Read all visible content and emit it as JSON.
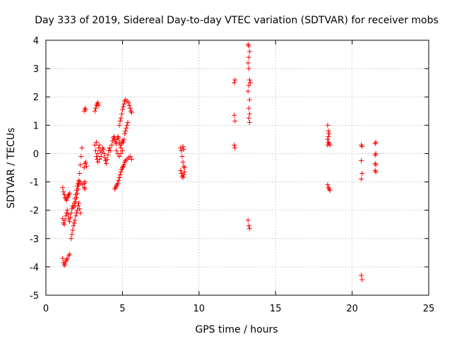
{
  "chart_data": {
    "type": "scatter",
    "title": "Day 333 of 2019, Sidereal Day-to-day VTEC variation (SDTVAR) for receiver mobs",
    "xlabel": "GPS time / hours",
    "ylabel": "SDTVAR / TECUs",
    "xlim": [
      0,
      25
    ],
    "ylim": [
      -5,
      4
    ],
    "xticks": [
      0,
      5,
      10,
      15,
      20,
      25
    ],
    "yticks": [
      -5,
      -4,
      -3,
      -2,
      -1,
      0,
      1,
      2,
      3,
      4
    ],
    "grid": true,
    "marker": "+",
    "color": "#ff0000",
    "series": [
      {
        "points": [
          [
            1.1,
            -1.2
          ],
          [
            1.15,
            -1.35
          ],
          [
            1.2,
            -1.45
          ],
          [
            1.25,
            -1.55
          ],
          [
            1.3,
            -1.6
          ],
          [
            1.35,
            -1.65
          ],
          [
            1.4,
            -1.55
          ],
          [
            1.45,
            -1.5
          ],
          [
            1.5,
            -1.45
          ],
          [
            1.55,
            -1.4
          ],
          [
            1.1,
            -2.3
          ],
          [
            1.15,
            -2.45
          ],
          [
            1.2,
            -2.5
          ],
          [
            1.25,
            -2.35
          ],
          [
            1.3,
            -2.2
          ],
          [
            1.35,
            -2.1
          ],
          [
            1.4,
            -2.0
          ],
          [
            1.45,
            -2.15
          ],
          [
            1.5,
            -2.3
          ],
          [
            1.55,
            -2.4
          ],
          [
            1.6,
            -2.25
          ],
          [
            1.65,
            -2.1
          ],
          [
            1.7,
            -1.95
          ],
          [
            1.75,
            -1.85
          ],
          [
            1.8,
            -1.9
          ],
          [
            1.85,
            -1.75
          ],
          [
            1.9,
            -1.6
          ],
          [
            1.95,
            -1.45
          ],
          [
            2.0,
            -1.3
          ],
          [
            2.05,
            -1.15
          ],
          [
            2.1,
            -1.05
          ],
          [
            2.15,
            -0.95
          ],
          [
            2.2,
            -0.7
          ],
          [
            2.25,
            -0.4
          ],
          [
            2.3,
            -0.1
          ],
          [
            2.35,
            0.2
          ],
          [
            1.9,
            -1.85
          ],
          [
            1.95,
            -1.7
          ],
          [
            2.0,
            -1.55
          ],
          [
            2.05,
            -1.4
          ],
          [
            2.1,
            -1.25
          ],
          [
            2.15,
            -1.1
          ],
          [
            2.2,
            -1.0
          ],
          [
            2.3,
            -1.05
          ],
          [
            2.4,
            -1.1
          ],
          [
            2.5,
            -1.2
          ],
          [
            2.55,
            -1.25
          ],
          [
            1.1,
            -3.7
          ],
          [
            1.15,
            -3.85
          ],
          [
            1.2,
            -3.95
          ],
          [
            1.25,
            -3.9
          ],
          [
            1.3,
            -3.8
          ],
          [
            1.35,
            -3.75
          ],
          [
            1.4,
            -3.7
          ],
          [
            1.5,
            -3.6
          ],
          [
            1.55,
            -3.55
          ],
          [
            1.65,
            -3.0
          ],
          [
            1.7,
            -2.85
          ],
          [
            1.75,
            -2.7
          ],
          [
            1.8,
            -2.55
          ],
          [
            1.85,
            -2.45
          ],
          [
            1.9,
            -2.35
          ],
          [
            1.95,
            -2.2
          ],
          [
            2.0,
            -2.1
          ],
          [
            2.05,
            -2.0
          ],
          [
            2.1,
            -1.85
          ],
          [
            2.15,
            -1.75
          ],
          [
            2.2,
            -1.95
          ],
          [
            2.25,
            -2.1
          ],
          [
            2.5,
            -0.5
          ],
          [
            2.55,
            -0.35
          ],
          [
            2.6,
            -0.3
          ],
          [
            2.65,
            -0.45
          ],
          [
            2.5,
            -1.05
          ],
          [
            2.55,
            -1.0
          ],
          [
            2.5,
            1.5
          ],
          [
            2.55,
            1.6
          ],
          [
            2.6,
            1.55
          ],
          [
            3.2,
            1.5
          ],
          [
            3.25,
            1.6
          ],
          [
            3.3,
            1.7
          ],
          [
            3.35,
            1.75
          ],
          [
            3.4,
            1.8
          ],
          [
            3.45,
            1.7
          ],
          [
            3.2,
            0.3
          ],
          [
            3.25,
            0.1
          ],
          [
            3.3,
            -0.1
          ],
          [
            3.35,
            -0.2
          ],
          [
            3.4,
            0.0
          ],
          [
            3.45,
            0.2
          ],
          [
            3.5,
            0.3
          ],
          [
            3.55,
            0.1
          ],
          [
            3.6,
            -0.1
          ],
          [
            3.65,
            0.05
          ],
          [
            3.7,
            0.2
          ],
          [
            3.75,
            0.15
          ],
          [
            3.8,
            0.0
          ],
          [
            3.85,
            -0.15
          ],
          [
            3.9,
            -0.25
          ],
          [
            3.95,
            -0.35
          ],
          [
            4.0,
            -0.2
          ],
          [
            4.05,
            -0.05
          ],
          [
            4.1,
            0.1
          ],
          [
            4.15,
            0.2
          ],
          [
            4.2,
            0.1
          ],
          [
            3.3,
            0.4
          ],
          [
            3.4,
            -0.3
          ],
          [
            3.5,
            -0.2
          ],
          [
            4.3,
            0.3
          ],
          [
            4.35,
            0.45
          ],
          [
            4.4,
            0.55
          ],
          [
            4.45,
            0.6
          ],
          [
            4.5,
            0.5
          ],
          [
            4.55,
            0.4
          ],
          [
            4.6,
            0.35
          ],
          [
            4.65,
            0.5
          ],
          [
            4.7,
            0.6
          ],
          [
            4.75,
            0.55
          ],
          [
            4.8,
            0.4
          ],
          [
            4.85,
            0.3
          ],
          [
            4.9,
            0.2
          ],
          [
            4.95,
            0.35
          ],
          [
            5.0,
            0.45
          ],
          [
            5.05,
            0.4
          ],
          [
            5.1,
            0.5
          ],
          [
            5.15,
            0.7
          ],
          [
            5.2,
            0.8
          ],
          [
            5.25,
            0.9
          ],
          [
            5.3,
            1.0
          ],
          [
            5.35,
            1.1
          ],
          [
            4.6,
            0.1
          ],
          [
            4.7,
            0.0
          ],
          [
            4.8,
            -0.1
          ],
          [
            4.9,
            0.0
          ],
          [
            5.0,
            0.1
          ],
          [
            4.5,
            -1.25
          ],
          [
            4.55,
            -1.2
          ],
          [
            4.6,
            -1.15
          ],
          [
            4.65,
            -1.1
          ],
          [
            4.7,
            -1.05
          ],
          [
            4.75,
            -0.95
          ],
          [
            4.8,
            -0.85
          ],
          [
            4.85,
            -0.75
          ],
          [
            4.9,
            -0.65
          ],
          [
            4.95,
            -0.55
          ],
          [
            5.0,
            -0.5
          ],
          [
            5.05,
            -0.45
          ],
          [
            5.1,
            -0.4
          ],
          [
            5.15,
            -0.3
          ],
          [
            5.2,
            -0.25
          ],
          [
            5.3,
            -0.2
          ],
          [
            5.4,
            -0.15
          ],
          [
            5.5,
            -0.1
          ],
          [
            5.6,
            -0.2
          ],
          [
            4.8,
            1.0
          ],
          [
            4.85,
            1.15
          ],
          [
            4.9,
            1.25
          ],
          [
            4.95,
            1.4
          ],
          [
            5.0,
            1.55
          ],
          [
            5.05,
            1.65
          ],
          [
            5.1,
            1.75
          ],
          [
            5.15,
            1.85
          ],
          [
            5.2,
            1.9
          ],
          [
            5.3,
            1.85
          ],
          [
            5.4,
            1.8
          ],
          [
            5.45,
            1.7
          ],
          [
            5.5,
            1.6
          ],
          [
            5.55,
            1.5
          ],
          [
            5.6,
            1.45
          ],
          [
            8.8,
            0.2
          ],
          [
            8.85,
            0.1
          ],
          [
            8.9,
            -0.1
          ],
          [
            8.95,
            -0.3
          ],
          [
            9.0,
            -0.45
          ],
          [
            9.05,
            -0.5
          ],
          [
            8.8,
            -0.6
          ],
          [
            8.85,
            -0.7
          ],
          [
            8.9,
            -0.8
          ],
          [
            8.95,
            -0.85
          ],
          [
            9.0,
            -0.75
          ],
          [
            9.05,
            -0.65
          ],
          [
            8.95,
            0.25
          ],
          [
            9.0,
            0.15
          ],
          [
            12.3,
            2.5
          ],
          [
            12.35,
            2.6
          ],
          [
            12.3,
            1.35
          ],
          [
            12.35,
            1.15
          ],
          [
            12.3,
            0.3
          ],
          [
            12.35,
            0.2
          ],
          [
            13.2,
            3.85
          ],
          [
            13.25,
            3.8
          ],
          [
            13.3,
            3.6
          ],
          [
            13.25,
            3.4
          ],
          [
            13.2,
            3.2
          ],
          [
            13.25,
            3.0
          ],
          [
            13.3,
            2.6
          ],
          [
            13.25,
            2.4
          ],
          [
            13.2,
            2.2
          ],
          [
            13.3,
            1.9
          ],
          [
            13.25,
            1.6
          ],
          [
            13.3,
            1.4
          ],
          [
            13.25,
            1.25
          ],
          [
            13.3,
            1.1
          ],
          [
            13.35,
            2.5
          ],
          [
            13.2,
            -2.35
          ],
          [
            13.25,
            -2.55
          ],
          [
            13.3,
            -2.65
          ],
          [
            18.4,
            1.0
          ],
          [
            18.45,
            0.8
          ],
          [
            18.5,
            0.7
          ],
          [
            18.45,
            0.6
          ],
          [
            18.4,
            0.5
          ],
          [
            18.45,
            0.4
          ],
          [
            18.5,
            0.35
          ],
          [
            18.55,
            0.3
          ],
          [
            18.4,
            0.3
          ],
          [
            18.4,
            -1.1
          ],
          [
            18.45,
            -1.2
          ],
          [
            18.5,
            -1.25
          ],
          [
            18.55,
            -1.3
          ],
          [
            20.6,
            0.3
          ],
          [
            20.65,
            0.25
          ],
          [
            20.6,
            -0.25
          ],
          [
            20.65,
            -0.7
          ],
          [
            20.6,
            -0.9
          ],
          [
            20.6,
            -4.3
          ],
          [
            20.65,
            -4.45
          ],
          [
            21.5,
            0.35
          ],
          [
            21.55,
            0.4
          ],
          [
            21.5,
            -0.05
          ],
          [
            21.55,
            0.0
          ],
          [
            21.5,
            -0.35
          ],
          [
            21.55,
            -0.4
          ],
          [
            21.5,
            -0.6
          ],
          [
            21.55,
            -0.65
          ]
        ]
      }
    ]
  }
}
